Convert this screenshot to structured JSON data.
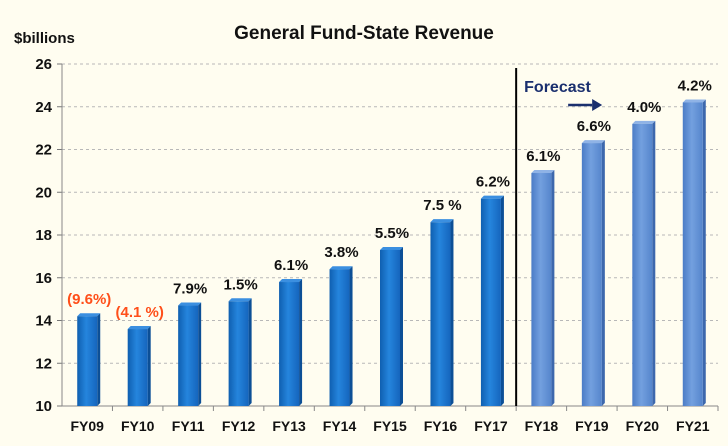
{
  "chart_data": {
    "type": "bar",
    "title": "General Fund-State Revenue",
    "ylabel": "$billions",
    "xlabel": "",
    "ylim": [
      10,
      26
    ],
    "yticks": [
      10,
      12,
      14,
      16,
      18,
      20,
      22,
      24,
      26
    ],
    "grid": true,
    "categories": [
      "FY09",
      "FY10",
      "FY11",
      "FY12",
      "FY13",
      "FY14",
      "FY15",
      "FY16",
      "FY17",
      "FY18",
      "FY19",
      "FY20",
      "FY21"
    ],
    "values": [
      14.2,
      13.6,
      14.7,
      14.9,
      15.8,
      16.4,
      17.3,
      18.6,
      19.7,
      20.9,
      22.3,
      23.2,
      24.2
    ],
    "data_labels": [
      "(9.6%)",
      "(4.1 %)",
      "7.9%",
      "1.5%",
      "6.1%",
      "3.8%",
      "5.5%",
      "7.5 %",
      "6.2%",
      "6.1%",
      "6.6%",
      "4.0%",
      "4.2%"
    ],
    "forecast": {
      "label": "Forecast",
      "start_category": "FY18"
    },
    "colors": {
      "actual_bar": "#1a72c8",
      "forecast_bar": "#5f8fd4",
      "negative_label": "#ff4f1a",
      "positive_label": "#111111",
      "forecast_text": "#1a2f6e",
      "grid": "#b8b8b8"
    }
  }
}
